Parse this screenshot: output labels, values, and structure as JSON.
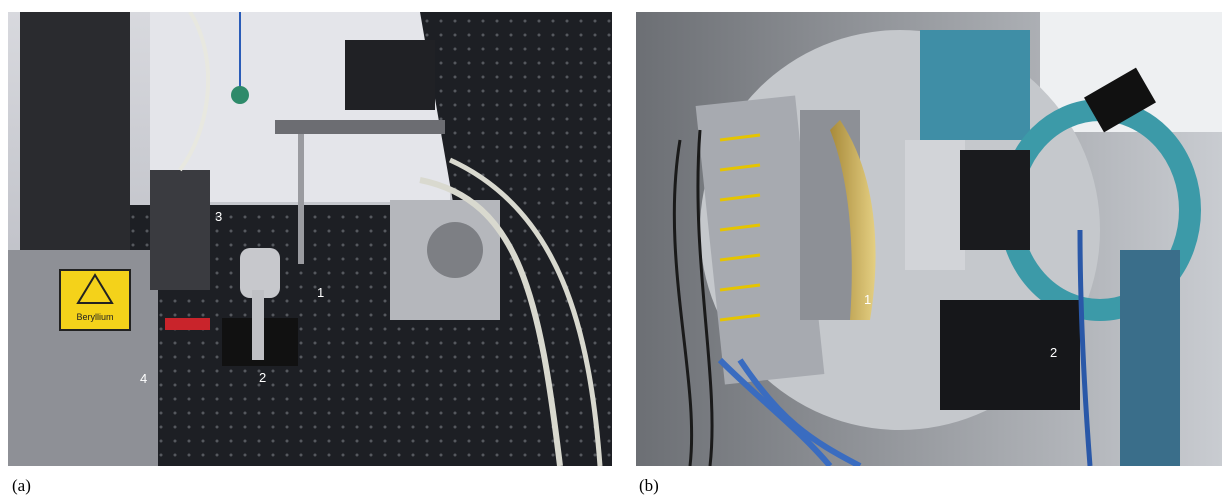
{
  "panels": [
    {
      "caption": "(a)",
      "sign": "Beryllium",
      "labels": [
        "1",
        "2",
        "3",
        "4"
      ]
    },
    {
      "caption": "(b)",
      "labels": [
        "1",
        "2"
      ]
    }
  ]
}
